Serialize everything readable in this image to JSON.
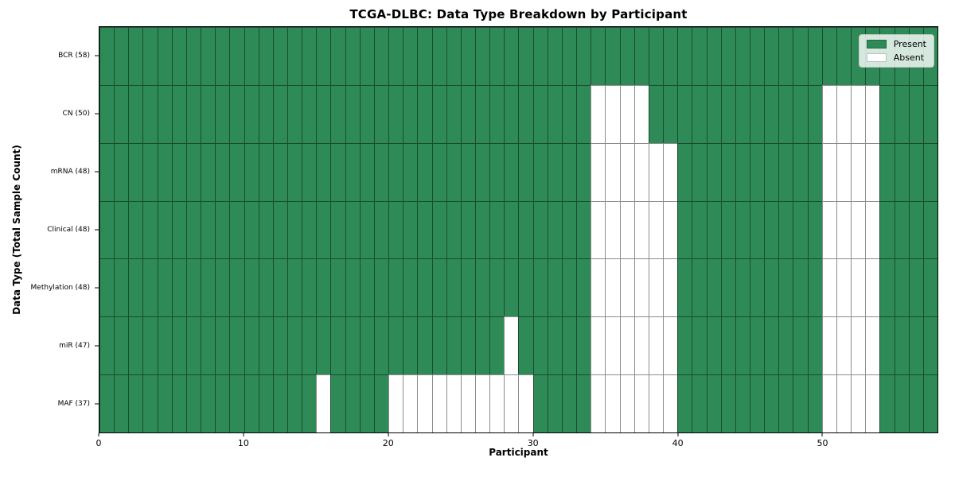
{
  "figure": {
    "title": "TCGA-DLBC: Data Type Breakdown by Participant"
  },
  "colors": {
    "present": "#2e8b57",
    "absent": "#ffffff",
    "cell_edge": "rgba(0,0,0,0.45)",
    "plot_border": "#000000"
  },
  "legend": {
    "items": [
      {
        "label": "Present",
        "color": "#2e8b57"
      },
      {
        "label": "Absent",
        "color": "#ffffff"
      }
    ]
  },
  "chart_data": {
    "type": "heatmap",
    "title": "TCGA-DLBC: Data Type Breakdown by Participant",
    "xlabel": "Participant",
    "ylabel": "Data Type (Total Sample Count)",
    "n_participants": 58,
    "x_range": [
      0,
      58
    ],
    "x_ticks": [
      0,
      10,
      20,
      30,
      40,
      50
    ],
    "legend_position": "upper right",
    "cell_encoding": "present = green, absent = white",
    "rows": [
      {
        "label": "BCR (58)",
        "total": 58,
        "absent_participants": []
      },
      {
        "label": "CN (50)",
        "total": 50,
        "absent_participants": [
          34,
          35,
          36,
          37,
          50,
          51,
          52,
          53
        ]
      },
      {
        "label": "mRNA (48)",
        "total": 48,
        "absent_participants": [
          34,
          35,
          36,
          37,
          38,
          39,
          50,
          51,
          52,
          53
        ]
      },
      {
        "label": "Clinical (48)",
        "total": 48,
        "absent_participants": [
          34,
          35,
          36,
          37,
          38,
          39,
          50,
          51,
          52,
          53
        ]
      },
      {
        "label": "Methylation (48)",
        "total": 48,
        "absent_participants": [
          34,
          35,
          36,
          37,
          38,
          39,
          50,
          51,
          52,
          53
        ]
      },
      {
        "label": "miR (47)",
        "total": 47,
        "absent_participants": [
          28,
          34,
          35,
          36,
          37,
          38,
          39,
          50,
          51,
          52,
          53
        ]
      },
      {
        "label": "MAF (37)",
        "total": 37,
        "absent_participants": [
          15,
          20,
          21,
          22,
          23,
          24,
          25,
          26,
          27,
          28,
          29,
          34,
          35,
          36,
          37,
          38,
          39,
          50,
          51,
          52,
          53
        ]
      }
    ]
  }
}
